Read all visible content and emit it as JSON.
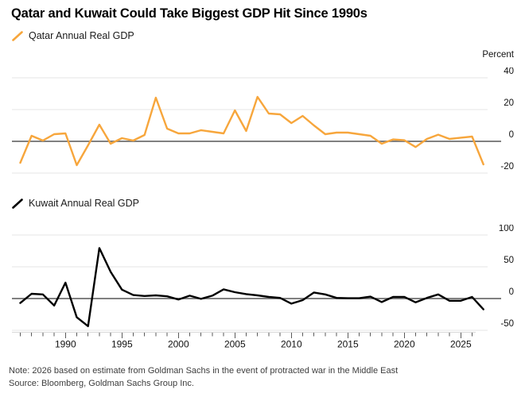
{
  "title": "Qatar and Kuwait Could Take Biggest GDP Hit Since 1990s",
  "unit_label": "Percent",
  "note": "Note: 2026 based on estimate from Goldman Sachs in the event of protracted war in the Middle East",
  "source": "Source: Bloomberg, Goldman Sachs Group Inc.",
  "colors": {
    "qatar_line": "#F7A63C",
    "kuwait_line": "#000000",
    "grid_line": "#E6E6E6",
    "zero_line": "#808080",
    "axis_line": "#D8D8D8",
    "tick_mark": "#5A5A5A",
    "tick_text": "#111111",
    "footer_text": "#3D3D3D"
  },
  "x_axis": {
    "tick_years_start": 1986,
    "tick_years_end": 2026,
    "label_years": [
      1990,
      1995,
      2000,
      2005,
      2010,
      2015,
      2020,
      2025
    ]
  },
  "chart_data": [
    {
      "type": "line",
      "legend": "Qatar Annual Real GDP",
      "color_key": "qatar_line",
      "ylabel": "Percent",
      "y_ticks": [
        40,
        20,
        0,
        -20
      ],
      "ylim": [
        -25,
        45
      ],
      "grid": true,
      "zero_line": true,
      "x": [
        1985,
        1986,
        1987,
        1988,
        1989,
        1990,
        1991,
        1992,
        1993,
        1994,
        1995,
        1996,
        1997,
        1998,
        1999,
        2000,
        2001,
        2002,
        2003,
        2004,
        2005,
        2006,
        2007,
        2008,
        2009,
        2010,
        2011,
        2012,
        2013,
        2014,
        2015,
        2016,
        2017,
        2018,
        2019,
        2020,
        2021,
        2022,
        2023,
        2024,
        2025,
        2026
      ],
      "values": [
        -13.5,
        3.5,
        0.5,
        4.5,
        5,
        -15,
        -2.5,
        10.5,
        -1.5,
        2,
        0.5,
        4,
        27.5,
        8,
        5,
        5,
        7,
        6,
        5,
        19.5,
        6.5,
        28,
        17.5,
        17,
        11.5,
        16,
        10,
        4.5,
        5.5,
        5.5,
        4.5,
        3.5,
        -1.5,
        1.2,
        0.7,
        -3.6,
        1.5,
        4.2,
        1.5,
        2.3,
        3,
        -14.5
      ]
    },
    {
      "type": "line",
      "legend": "Kuwait Annual Real GDP",
      "color_key": "kuwait_line",
      "ylabel": "Percent",
      "y_ticks": [
        100,
        50,
        0,
        -50
      ],
      "ylim": [
        -55,
        110
      ],
      "grid": true,
      "zero_line": true,
      "x": [
        1985,
        1986,
        1987,
        1988,
        1989,
        1990,
        1991,
        1992,
        1993,
        1994,
        1995,
        1996,
        1997,
        1998,
        1999,
        2000,
        2001,
        2002,
        2003,
        2004,
        2005,
        2006,
        2007,
        2008,
        2009,
        2010,
        2011,
        2012,
        2013,
        2014,
        2015,
        2016,
        2017,
        2018,
        2019,
        2020,
        2021,
        2022,
        2023,
        2024,
        2025,
        2026
      ],
      "values": [
        -7,
        7.5,
        6.5,
        -11,
        25,
        -29.5,
        -43.5,
        79.5,
        42,
        14,
        5.5,
        4,
        5,
        3.5,
        -1.5,
        4.5,
        -0.5,
        4.5,
        14.5,
        10,
        7,
        5,
        2.5,
        1,
        -8,
        -2.5,
        9.5,
        6.5,
        1,
        0.5,
        0.5,
        3,
        -5.5,
        2.5,
        2.5,
        -6,
        1,
        6.5,
        -3.5,
        -3.5,
        2.5,
        -17
      ]
    }
  ]
}
